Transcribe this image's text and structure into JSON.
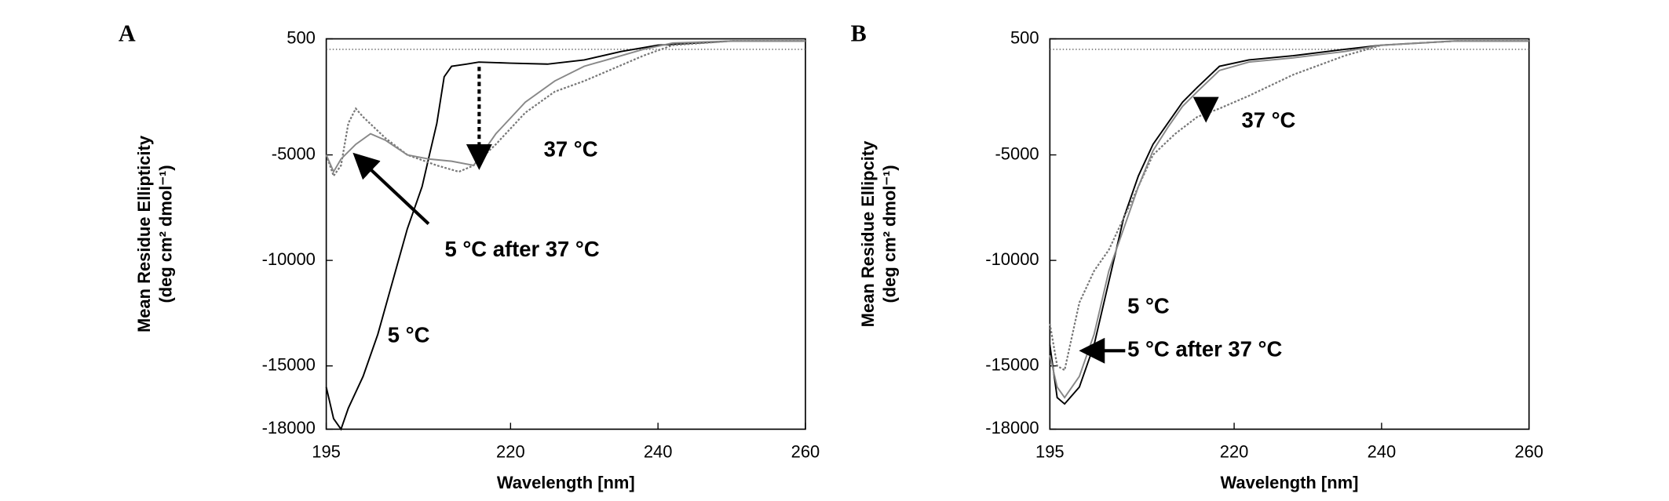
{
  "chart_data": [
    {
      "type": "line",
      "panel": "A",
      "y_label": [
        "Mean Residue Ellipticity",
        "(deg cm² dmol⁻¹)"
      ],
      "x_label": "Wavelength [nm]",
      "xlim": [
        195,
        260
      ],
      "xticks": [
        195,
        220,
        240,
        260
      ],
      "ylim": [
        500,
        -18000
      ],
      "yticks": [
        500,
        -5000,
        -10000,
        -15000,
        -18000
      ],
      "series": [
        {
          "name": "5 °C",
          "color": "#000000",
          "dash": false,
          "x": [
            195,
            196,
            197,
            198,
            200,
            202,
            204,
            206,
            208,
            209,
            210,
            211,
            212,
            214,
            215.7,
            220,
            225,
            230,
            235,
            240,
            250,
            260
          ],
          "values": [
            -16000,
            -17500,
            -18000,
            -17000,
            -15500,
            -13500,
            -11000,
            -8500,
            -6500,
            -5000,
            -3500,
            -1300,
            -800,
            -700,
            -600,
            -650,
            -700,
            -500,
            -100,
            200,
            400,
            400
          ]
        },
        {
          "name": "37 °C",
          "color": "#777777",
          "dash": true,
          "x": [
            195,
            196,
            197,
            198,
            199,
            200,
            203,
            206,
            210,
            213,
            215,
            218,
            222,
            226,
            230,
            234,
            238,
            242,
            250,
            260
          ],
          "values": [
            -5000,
            -6000,
            -5500,
            -3500,
            -2800,
            -3200,
            -4200,
            -5000,
            -5500,
            -5800,
            -5500,
            -4500,
            -3000,
            -2000,
            -1500,
            -900,
            -300,
            200,
            400,
            400
          ]
        },
        {
          "name": "5 °C after 37 °C",
          "color": "#888888",
          "dash": false,
          "x": [
            195,
            196,
            197,
            199,
            201,
            203,
            206,
            209,
            212,
            215,
            218,
            222,
            226,
            230,
            234,
            238,
            242,
            250,
            260
          ],
          "values": [
            -5000,
            -5800,
            -5200,
            -4500,
            -4000,
            -4300,
            -5000,
            -5200,
            -5300,
            -5500,
            -4000,
            -2500,
            -1500,
            -800,
            -400,
            0,
            300,
            400,
            400
          ]
        }
      ]
    },
    {
      "type": "line",
      "panel": "B",
      "y_label": [
        "Mean Residue Ellipcity",
        "(deg cm² dmol⁻¹)"
      ],
      "x_label": "Wavelength [nm]",
      "xlim": [
        195,
        260
      ],
      "xticks": [
        195,
        220,
        240,
        260
      ],
      "ylim": [
        500,
        -18000
      ],
      "yticks": [
        500,
        -5000,
        -10000,
        -15000,
        -18000
      ],
      "series": [
        {
          "name": "5 °C",
          "color": "#000000",
          "dash": false,
          "x": [
            195,
            196,
            197,
            199,
            201,
            203,
            205,
            207,
            209,
            211,
            213,
            215,
            218,
            222,
            228,
            235,
            240,
            250,
            260
          ],
          "values": [
            -14000,
            -16500,
            -16800,
            -16000,
            -14000,
            -11000,
            -8000,
            -6000,
            -4500,
            -3500,
            -2500,
            -1800,
            -800,
            -500,
            -300,
            0,
            200,
            400,
            400
          ]
        },
        {
          "name": "37 °C",
          "color": "#777777",
          "dash": true,
          "x": [
            195,
            196,
            197,
            199,
            201,
            203,
            205,
            207,
            209,
            212,
            215,
            218,
            222,
            228,
            235,
            240,
            250,
            260
          ],
          "values": [
            -13000,
            -15000,
            -15200,
            -12000,
            -10500,
            -9500,
            -8000,
            -6500,
            -5000,
            -4000,
            -3200,
            -2800,
            -2200,
            -1200,
            -300,
            200,
            400,
            400
          ]
        },
        {
          "name": "5 °C after 37 °C",
          "color": "#888888",
          "dash": false,
          "x": [
            195,
            196,
            197,
            199,
            201,
            203,
            205,
            207,
            209,
            211,
            213,
            215,
            218,
            222,
            228,
            235,
            240,
            250,
            260
          ],
          "values": [
            -14500,
            -16000,
            -16500,
            -15500,
            -13500,
            -10500,
            -8500,
            -6500,
            -4800,
            -3700,
            -2700,
            -2000,
            -1000,
            -600,
            -400,
            -100,
            200,
            400,
            400
          ]
        }
      ]
    }
  ]
}
